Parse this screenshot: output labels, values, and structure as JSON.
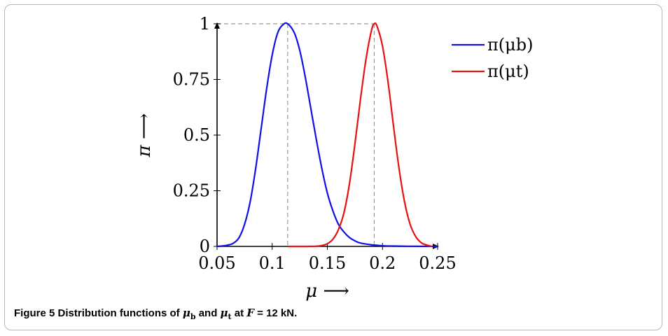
{
  "figure": {
    "caption_label": "Figure 5",
    "caption_text": "Distribution functions of μb and μt at F = 12 kN.",
    "caption_parts": {
      "prefix": "Distribution functions of ",
      "sym1": "μ",
      "sym1_sub": "b",
      "and": " and ",
      "sym2": "μ",
      "sym2_sub": "t",
      "at": " at ",
      "force_var": "F",
      "force_value": " = 12 kN."
    }
  },
  "colors": {
    "series_b": "#1010e8",
    "series_t": "#e81010",
    "guide": "#9a9a9a",
    "axis": "#000000"
  },
  "chart_data": {
    "type": "line",
    "xlabel": "μ ⟶",
    "ylabel": "π ⟶",
    "xlim": [
      0.05,
      0.25
    ],
    "ylim": [
      0,
      1
    ],
    "xticks": [
      0.05,
      0.1,
      0.15,
      0.2,
      0.25
    ],
    "xtick_labels": [
      "0.05",
      "0.1",
      "0.15",
      "0.2",
      "0.25"
    ],
    "yticks": [
      0,
      0.25,
      0.5,
      0.75,
      1
    ],
    "ytick_labels": [
      "0",
      "0.25",
      "0.5",
      "0.75",
      "1"
    ],
    "grid": false,
    "legend_position": "top-right",
    "series": [
      {
        "name": "π(μb)",
        "color_key": "series_b",
        "x": [
          0.05,
          0.055,
          0.06,
          0.065,
          0.07,
          0.075,
          0.08,
          0.085,
          0.09,
          0.095,
          0.1,
          0.105,
          0.11,
          0.114,
          0.12,
          0.125,
          0.13,
          0.135,
          0.14,
          0.145,
          0.15,
          0.155,
          0.16,
          0.165,
          0.17,
          0.175,
          0.18,
          0.19,
          0.2,
          0.21,
          0.22,
          0.23,
          0.25
        ],
        "y": [
          0,
          0.002,
          0.006,
          0.015,
          0.04,
          0.1,
          0.2,
          0.35,
          0.53,
          0.71,
          0.86,
          0.96,
          0.997,
          1.0,
          0.96,
          0.88,
          0.76,
          0.62,
          0.48,
          0.35,
          0.24,
          0.16,
          0.1,
          0.065,
          0.04,
          0.025,
          0.015,
          0.007,
          0.003,
          0.0015,
          0.0007,
          0.0003,
          0
        ]
      },
      {
        "name": "π(μt)",
        "color_key": "series_t",
        "x": [
          0.114,
          0.13,
          0.14,
          0.145,
          0.15,
          0.155,
          0.16,
          0.165,
          0.17,
          0.175,
          0.18,
          0.185,
          0.19,
          0.1925,
          0.195,
          0.2,
          0.205,
          0.21,
          0.215,
          0.22,
          0.225,
          0.23,
          0.235,
          0.24,
          0.245
        ],
        "y": [
          0,
          0,
          0.001,
          0.004,
          0.012,
          0.032,
          0.075,
          0.15,
          0.28,
          0.46,
          0.66,
          0.84,
          0.97,
          1.0,
          0.99,
          0.9,
          0.74,
          0.54,
          0.35,
          0.2,
          0.1,
          0.045,
          0.017,
          0.006,
          0
        ]
      }
    ],
    "peak_guides": [
      {
        "x": 0.114,
        "y": 1
      },
      {
        "x": 0.1925,
        "y": 1
      }
    ]
  }
}
